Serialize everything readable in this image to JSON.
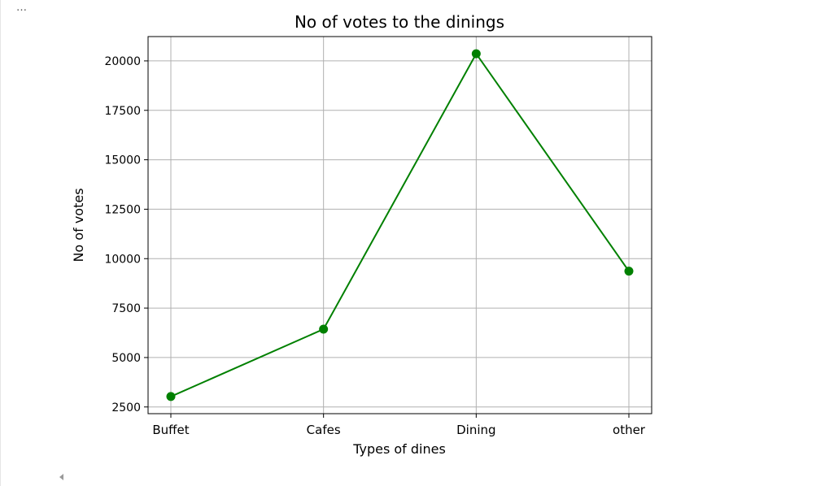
{
  "output_cell": {
    "ellipsis_label": "…"
  },
  "colors": {
    "line": "#008000",
    "grid": "#b0b0b0",
    "axis": "#000000"
  },
  "chart_data": {
    "type": "line",
    "title": "No of votes to the dinings",
    "xlabel": "Types of dines",
    "ylabel": "No of votes",
    "categories": [
      "Buffet",
      "Cafes",
      "Dining",
      "other"
    ],
    "series": [
      {
        "values": [
          3028,
          6434,
          20363,
          9367
        ],
        "marker": "circle"
      }
    ],
    "yticks": [
      2500,
      5000,
      7500,
      10000,
      12500,
      15000,
      17500,
      20000
    ],
    "ylim": [
      2161,
      21230
    ],
    "grid": true,
    "legend": "none"
  }
}
